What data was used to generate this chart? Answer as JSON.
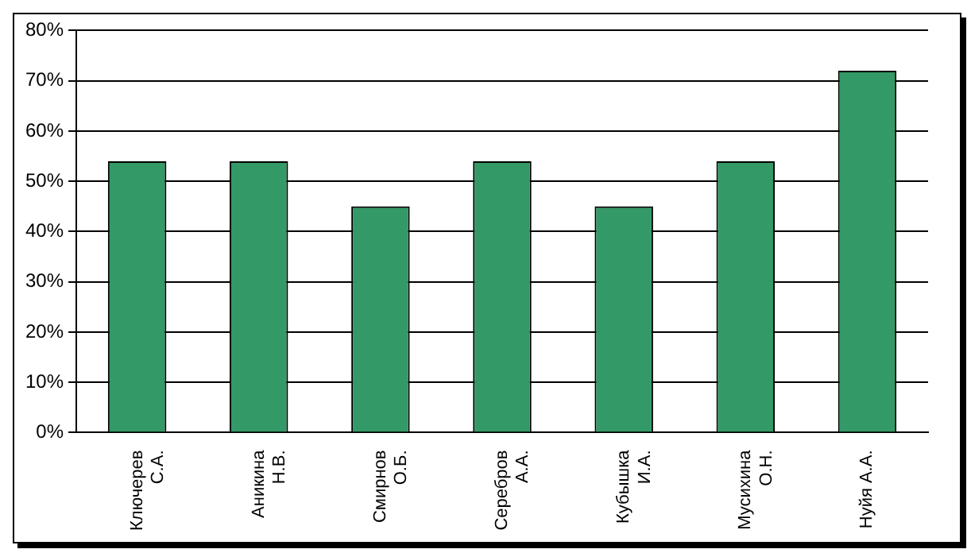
{
  "chart_data": {
    "type": "bar",
    "categories": [
      "Ключерев С.А.",
      "Аникина Н.В.",
      "Смирнов О.Б.",
      "Серебров А.А.",
      "Кубышка И.А.",
      "Мусихина О.Н.",
      "Нуйя А.А."
    ],
    "values": [
      54,
      54,
      45,
      54,
      45,
      54,
      72
    ],
    "color": "#339966",
    "ylim": [
      0,
      80
    ],
    "yticks": [
      {
        "value": 0,
        "label": "0%"
      },
      {
        "value": 10,
        "label": "10%"
      },
      {
        "value": 20,
        "label": "20%"
      },
      {
        "value": 30,
        "label": "30%"
      },
      {
        "value": 40,
        "label": "40%"
      },
      {
        "value": 50,
        "label": "50%"
      },
      {
        "value": 60,
        "label": "60%"
      },
      {
        "value": 70,
        "label": "70%"
      },
      {
        "value": 80,
        "label": "80%"
      }
    ],
    "grid": "y"
  }
}
